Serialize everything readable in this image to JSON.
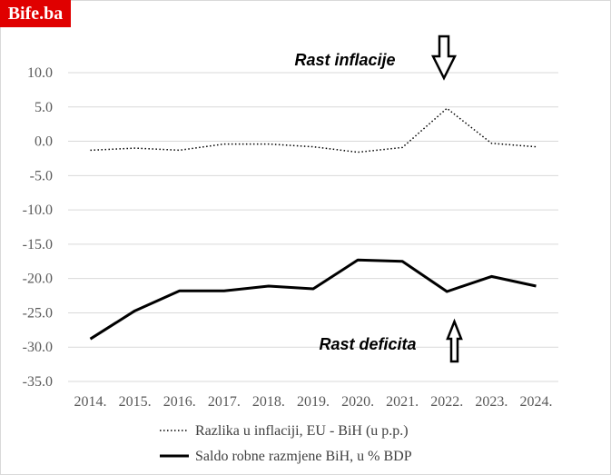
{
  "brand": {
    "logo_text": "Bife.ba",
    "logo_color": "#e00000"
  },
  "chart_data": {
    "type": "line",
    "categories": [
      "2014.",
      "2015.",
      "2016.",
      "2017.",
      "2018.",
      "2019.",
      "2020.",
      "2021.",
      "2022.",
      "2023.",
      "2024."
    ],
    "series": [
      {
        "name": "Razlika u inflaciji, EU - BiH (u p.p.)",
        "style": "dotted",
        "color": "#000000",
        "values": [
          -1.3,
          -1.0,
          -1.3,
          -0.4,
          -0.4,
          -0.8,
          -1.6,
          -0.9,
          4.8,
          -0.3,
          -0.8
        ]
      },
      {
        "name": "Saldo robne razmjene BiH, u  % BDP",
        "style": "solid",
        "color": "#000000",
        "values": [
          -28.8,
          -24.7,
          -21.8,
          -21.8,
          -21.1,
          -21.5,
          -17.3,
          -17.5,
          -21.9,
          -19.7,
          -21.1
        ]
      }
    ],
    "y_ticks": [
      "10.0",
      "5.0",
      "0.0",
      "-5.0",
      "-10.0",
      "-15.0",
      "-20.0",
      "-25.0",
      "-30.0",
      "-35.0"
    ],
    "ylim": [
      -35,
      10
    ],
    "grid": true,
    "legend_position": "bottom",
    "annotations": [
      {
        "text": "Rast inflacije",
        "arrow": "down"
      },
      {
        "text": "Rast deficita",
        "arrow": "up"
      }
    ]
  }
}
